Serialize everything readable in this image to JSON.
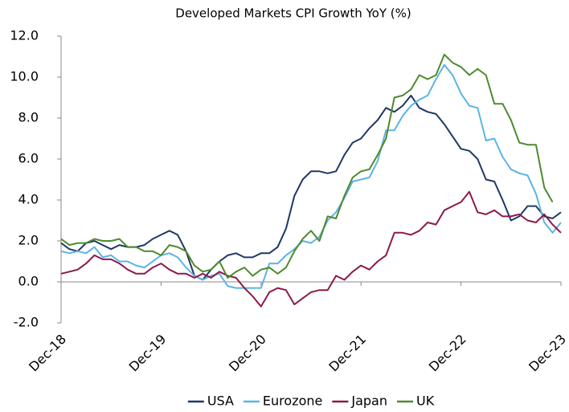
{
  "chart_data": {
    "type": "line",
    "title": "Developed Markets CPI Growth YoY (%)",
    "categories": [
      "Dec-18",
      null,
      null,
      null,
      null,
      null,
      null,
      null,
      null,
      null,
      null,
      null,
      "Dec-19",
      null,
      null,
      null,
      null,
      null,
      null,
      null,
      null,
      null,
      null,
      null,
      "Dec-20",
      null,
      null,
      null,
      null,
      null,
      null,
      null,
      null,
      null,
      null,
      null,
      "Dec-21",
      null,
      null,
      null,
      null,
      null,
      null,
      null,
      null,
      null,
      null,
      null,
      "Dec-22",
      null,
      null,
      null,
      null,
      null,
      null,
      null,
      null,
      null,
      null,
      null,
      "Dec-23"
    ],
    "series": [
      {
        "name": "USA",
        "color": "#1f3864",
        "values": [
          1.9,
          1.6,
          1.5,
          1.9,
          2.0,
          1.8,
          1.6,
          1.8,
          1.7,
          1.7,
          1.8,
          2.1,
          2.3,
          2.5,
          2.3,
          1.5,
          0.3,
          0.1,
          0.6,
          1.0,
          1.3,
          1.4,
          1.2,
          1.2,
          1.4,
          1.4,
          1.7,
          2.6,
          4.2,
          5.0,
          5.4,
          5.4,
          5.3,
          5.4,
          6.2,
          6.8,
          7.0,
          7.5,
          7.9,
          8.5,
          8.3,
          8.6,
          9.1,
          8.5,
          8.3,
          8.2,
          7.7,
          7.1,
          6.5,
          6.4,
          6.0,
          5.0,
          4.9,
          4.0,
          3.0,
          3.2,
          3.7,
          3.7,
          3.2,
          3.1,
          3.4
        ]
      },
      {
        "name": "Eurozone",
        "color": "#5bb4e5",
        "values": [
          1.5,
          1.4,
          1.5,
          1.4,
          1.7,
          1.2,
          1.3,
          1.0,
          1.0,
          0.8,
          0.7,
          1.0,
          1.3,
          1.4,
          1.2,
          0.7,
          0.3,
          0.1,
          0.3,
          0.4,
          -0.2,
          -0.3,
          -0.3,
          -0.3,
          -0.3,
          0.9,
          0.9,
          1.3,
          1.6,
          2.0,
          1.9,
          2.2,
          3.0,
          3.4,
          4.1,
          4.9,
          5.0,
          5.1,
          5.9,
          7.4,
          7.4,
          8.1,
          8.6,
          8.9,
          9.1,
          9.9,
          10.6,
          10.1,
          9.2,
          8.6,
          8.5,
          6.9,
          7.0,
          6.1,
          5.5,
          5.3,
          5.2,
          4.3,
          2.9,
          2.4,
          2.9
        ]
      },
      {
        "name": "Japan",
        "color": "#8b1a4a",
        "values": [
          0.4,
          0.5,
          0.6,
          0.9,
          1.3,
          1.1,
          1.1,
          0.9,
          0.6,
          0.4,
          0.4,
          0.7,
          0.9,
          0.6,
          0.4,
          0.4,
          0.2,
          0.4,
          0.2,
          0.5,
          0.3,
          0.2,
          -0.3,
          -0.7,
          -1.2,
          -0.5,
          -0.3,
          -0.4,
          -1.1,
          -0.8,
          -0.5,
          -0.4,
          -0.4,
          0.3,
          0.1,
          0.5,
          0.8,
          0.6,
          1.0,
          1.3,
          2.4,
          2.4,
          2.3,
          2.5,
          2.9,
          2.8,
          3.5,
          3.7,
          3.9,
          4.4,
          3.4,
          3.3,
          3.5,
          3.2,
          3.2,
          3.3,
          3.0,
          2.9,
          3.3,
          2.8,
          2.4
        ]
      },
      {
        "name": "UK",
        "color": "#4e8a2e",
        "values": [
          2.1,
          1.8,
          1.9,
          1.9,
          2.1,
          2.0,
          2.0,
          2.1,
          1.7,
          1.7,
          1.5,
          1.5,
          1.3,
          1.8,
          1.7,
          1.5,
          0.8,
          0.5,
          0.6,
          1.0,
          0.2,
          0.5,
          0.7,
          0.3,
          0.6,
          0.7,
          0.4,
          0.7,
          1.5,
          2.1,
          2.5,
          2.0,
          3.2,
          3.1,
          4.2,
          5.1,
          5.4,
          5.5,
          6.2,
          7.0,
          9.0,
          9.1,
          9.4,
          10.1,
          9.9,
          10.1,
          11.1,
          10.7,
          10.5,
          10.1,
          10.4,
          10.1,
          8.7,
          8.7,
          7.9,
          6.8,
          6.7,
          6.7,
          4.6,
          3.9,
          null
        ]
      }
    ],
    "ylim": [
      -2,
      12
    ],
    "yticks": [
      {
        "value": -2,
        "label": "-2.0"
      },
      {
        "value": 0,
        "label": "0.0"
      },
      {
        "value": 2,
        "label": "2.0"
      },
      {
        "value": 4,
        "label": "4.0"
      },
      {
        "value": 6,
        "label": "6.0"
      },
      {
        "value": 8,
        "label": "8.0"
      },
      {
        "value": 10,
        "label": "10.0"
      },
      {
        "value": 12,
        "label": "12.0"
      }
    ],
    "grid": false,
    "legend": "bottom"
  }
}
